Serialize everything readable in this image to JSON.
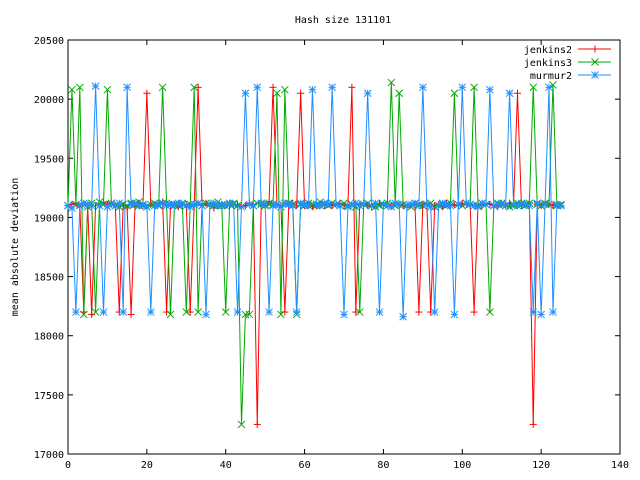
{
  "chart_data": {
    "type": "line",
    "title": "Hash size 131101",
    "xlabel": "",
    "ylabel": "mean absolute deviation",
    "xlim": [
      0,
      140
    ],
    "ylim": [
      17000,
      20500
    ],
    "x_ticks": [
      0,
      20,
      40,
      60,
      80,
      100,
      120,
      140
    ],
    "y_ticks": [
      17000,
      17500,
      18000,
      18500,
      19000,
      19500,
      20000,
      20500
    ],
    "grid": false,
    "legend_position": "top-right",
    "x": [
      0,
      1,
      2,
      3,
      4,
      5,
      6,
      7,
      8,
      9,
      10,
      11,
      12,
      13,
      14,
      15,
      16,
      17,
      18,
      19,
      20,
      21,
      22,
      23,
      24,
      25,
      26,
      27,
      28,
      29,
      30,
      31,
      32,
      33,
      34,
      35,
      36,
      37,
      38,
      39,
      40,
      41,
      42,
      43,
      44,
      45,
      46,
      47,
      48,
      49,
      50,
      51,
      52,
      53,
      54,
      55,
      56,
      57,
      58,
      59,
      60,
      61,
      62,
      63,
      64,
      65,
      66,
      67,
      68,
      69,
      70,
      71,
      72,
      73,
      74,
      75,
      76,
      77,
      78,
      79,
      80,
      81,
      82,
      83,
      84,
      85,
      86,
      87,
      88,
      89,
      90,
      91,
      92,
      93,
      94,
      95,
      96,
      97,
      98,
      99,
      100,
      101,
      102,
      103,
      104,
      105,
      106,
      107,
      108,
      109,
      110,
      111,
      112,
      113,
      114,
      115,
      116,
      117,
      118,
      119,
      120,
      121,
      122,
      123,
      124,
      125
    ],
    "series": [
      {
        "name": "jenkins2",
        "color": "#ff0000",
        "marker": "plus",
        "values": [
          19100,
          19110,
          19120,
          19090,
          18200,
          19100,
          18180,
          19100,
          19120,
          19130,
          19110,
          19120,
          19100,
          18200,
          19100,
          19080,
          18180,
          19090,
          19120,
          19100,
          20050,
          19110,
          19100,
          19120,
          19130,
          18200,
          19100,
          19110,
          19090,
          19100,
          19110,
          18200,
          19100,
          20100,
          19110,
          19120,
          19100,
          19080,
          19100,
          19110,
          19100,
          19120,
          19100,
          19110,
          19090,
          19100,
          19120,
          19110,
          17250,
          19120,
          19100,
          19130,
          20100,
          19110,
          19100,
          18200,
          19110,
          19120,
          19100,
          20050,
          19100,
          19110,
          19090,
          19100,
          19110,
          19100,
          19120,
          19100,
          19110,
          19120,
          19100,
          19110,
          20100,
          18200,
          19110,
          19120,
          19100,
          19090,
          19110,
          19120,
          19100,
          19110,
          19100,
          19120,
          19110,
          19100,
          19090,
          19110,
          19100,
          18200,
          19110,
          19120,
          18200,
          19100,
          19110,
          19090,
          19120,
          19100,
          19110,
          19100,
          19120,
          19110,
          19100,
          18200,
          19110,
          19100,
          19120,
          19110,
          19100,
          19090,
          19110,
          19100,
          19120,
          19110,
          20050,
          19100,
          19110,
          19120,
          17250,
          19110,
          19100,
          19120,
          19110,
          19100,
          19110,
          19100
        ]
      },
      {
        "name": "jenkins3",
        "color": "#00aa00",
        "marker": "cross",
        "values": [
          19100,
          20080,
          19110,
          20100,
          18180,
          19090,
          19120,
          18200,
          19130,
          19110,
          20080,
          19120,
          19100,
          19090,
          19110,
          19100,
          19120,
          19110,
          19130,
          19100,
          19090,
          19110,
          19120,
          19100,
          20100,
          19120,
          18180,
          19110,
          19100,
          19120,
          18200,
          19110,
          20100,
          18200,
          19100,
          19120,
          19110,
          19100,
          19130,
          19100,
          18200,
          19110,
          19120,
          19100,
          17250,
          18180,
          18180,
          19100,
          19120,
          19110,
          19100,
          19120,
          19110,
          20050,
          18180,
          20080,
          19120,
          19110,
          18180,
          19110,
          19100,
          19120,
          19110,
          19100,
          19130,
          19110,
          19100,
          19120,
          19110,
          19100,
          19120,
          19100,
          19110,
          19090,
          18200,
          19110,
          19120,
          19100,
          19090,
          19100,
          19110,
          19120,
          20140,
          19100,
          20050,
          19110,
          19100,
          19090,
          19120,
          19110,
          19100,
          19110,
          19120,
          19090,
          19100,
          19110,
          19100,
          19120,
          20050,
          19110,
          19100,
          19120,
          19110,
          20100,
          19100,
          19120,
          19110,
          18200,
          19100,
          19120,
          19110,
          19100,
          19090,
          19100,
          19120,
          19110,
          19100,
          19120,
          20100,
          19110,
          19100,
          19120,
          19110,
          20120,
          19100,
          19110
        ]
      },
      {
        "name": "murmur2",
        "color": "#1f8fff",
        "marker": "star",
        "values": [
          19100,
          19080,
          18200,
          19100,
          19120,
          19110,
          19100,
          20110,
          19100,
          18200,
          19090,
          19110,
          19100,
          19120,
          18200,
          20100,
          19110,
          19120,
          19100,
          19110,
          19090,
          18200,
          19100,
          19110,
          19120,
          19100,
          19110,
          19100,
          19120,
          19110,
          19100,
          19090,
          19110,
          19120,
          19100,
          18180,
          19110,
          19120,
          19100,
          19110,
          19100,
          19120,
          19110,
          18200,
          19090,
          20050,
          19110,
          19100,
          20100,
          19120,
          19110,
          18200,
          19100,
          19110,
          19090,
          19120,
          19110,
          19100,
          18200,
          19120,
          19110,
          19100,
          20080,
          19110,
          19100,
          19120,
          19110,
          20100,
          19110,
          19100,
          18180,
          19090,
          19110,
          19120,
          19100,
          19110,
          20050,
          19100,
          19120,
          18200,
          19110,
          19100,
          19090,
          19120,
          19110,
          18160,
          19100,
          19110,
          19120,
          19100,
          20100,
          19110,
          19090,
          18200,
          19100,
          19120,
          19110,
          19100,
          18180,
          19110,
          20100,
          19120,
          19110,
          19100,
          19090,
          19120,
          19110,
          20080,
          19100,
          19110,
          19120,
          19100,
          20050,
          19110,
          19100,
          19120,
          19110,
          19100,
          18200,
          19120,
          18180,
          19110,
          20100,
          18200,
          19110,
          19100
        ]
      }
    ]
  }
}
